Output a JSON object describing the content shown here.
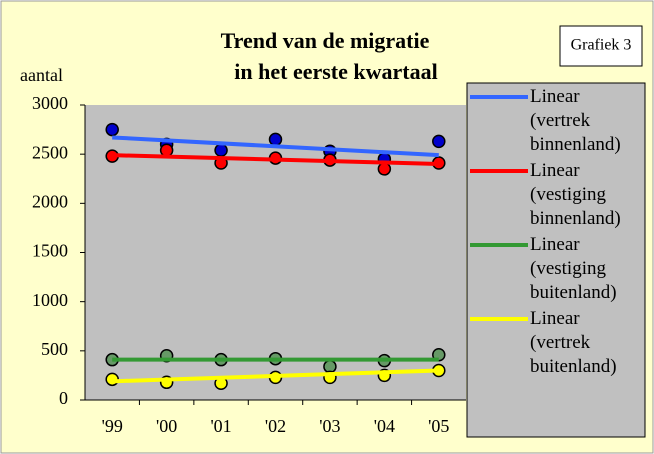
{
  "chart_data": {
    "type": "scatter-trend",
    "title": [
      "Trend van de migratie",
      "in het eerste kwartaal"
    ],
    "badge": "Grafiek 3",
    "y_label": "aantal",
    "categories": [
      "'99",
      "'00",
      "'01",
      "'02",
      "'03",
      "'04",
      "'05"
    ],
    "ylim": [
      0,
      3000
    ],
    "yticks": [
      0,
      500,
      1000,
      1500,
      2000,
      2500,
      3000
    ],
    "series": [
      {
        "name": "Linear (vertrek binnenland)",
        "color": "#3366ff",
        "marker_color": "#0000cc",
        "values": [
          2750,
          2600,
          2540,
          2650,
          2530,
          2450,
          2630
        ],
        "trend": [
          2670,
          2490
        ]
      },
      {
        "name": "Linear (vestiging binnenland)",
        "color": "#ff0000",
        "marker_color": "#ff0000",
        "values": [
          2480,
          2540,
          2410,
          2460,
          2440,
          2350,
          2410
        ],
        "trend": [
          2490,
          2400
        ]
      },
      {
        "name": "Linear (vestiging buitenland)",
        "color": "#339933",
        "marker_color": "#669966",
        "values": [
          410,
          450,
          410,
          420,
          340,
          400,
          460
        ],
        "trend": [
          410,
          410
        ]
      },
      {
        "name": "Linear (vertrek buitenland)",
        "color": "#ffff00",
        "marker_color": "#ffff00",
        "values": [
          210,
          180,
          170,
          230,
          230,
          250,
          300
        ],
        "trend": [
          190,
          300
        ]
      }
    ]
  }
}
